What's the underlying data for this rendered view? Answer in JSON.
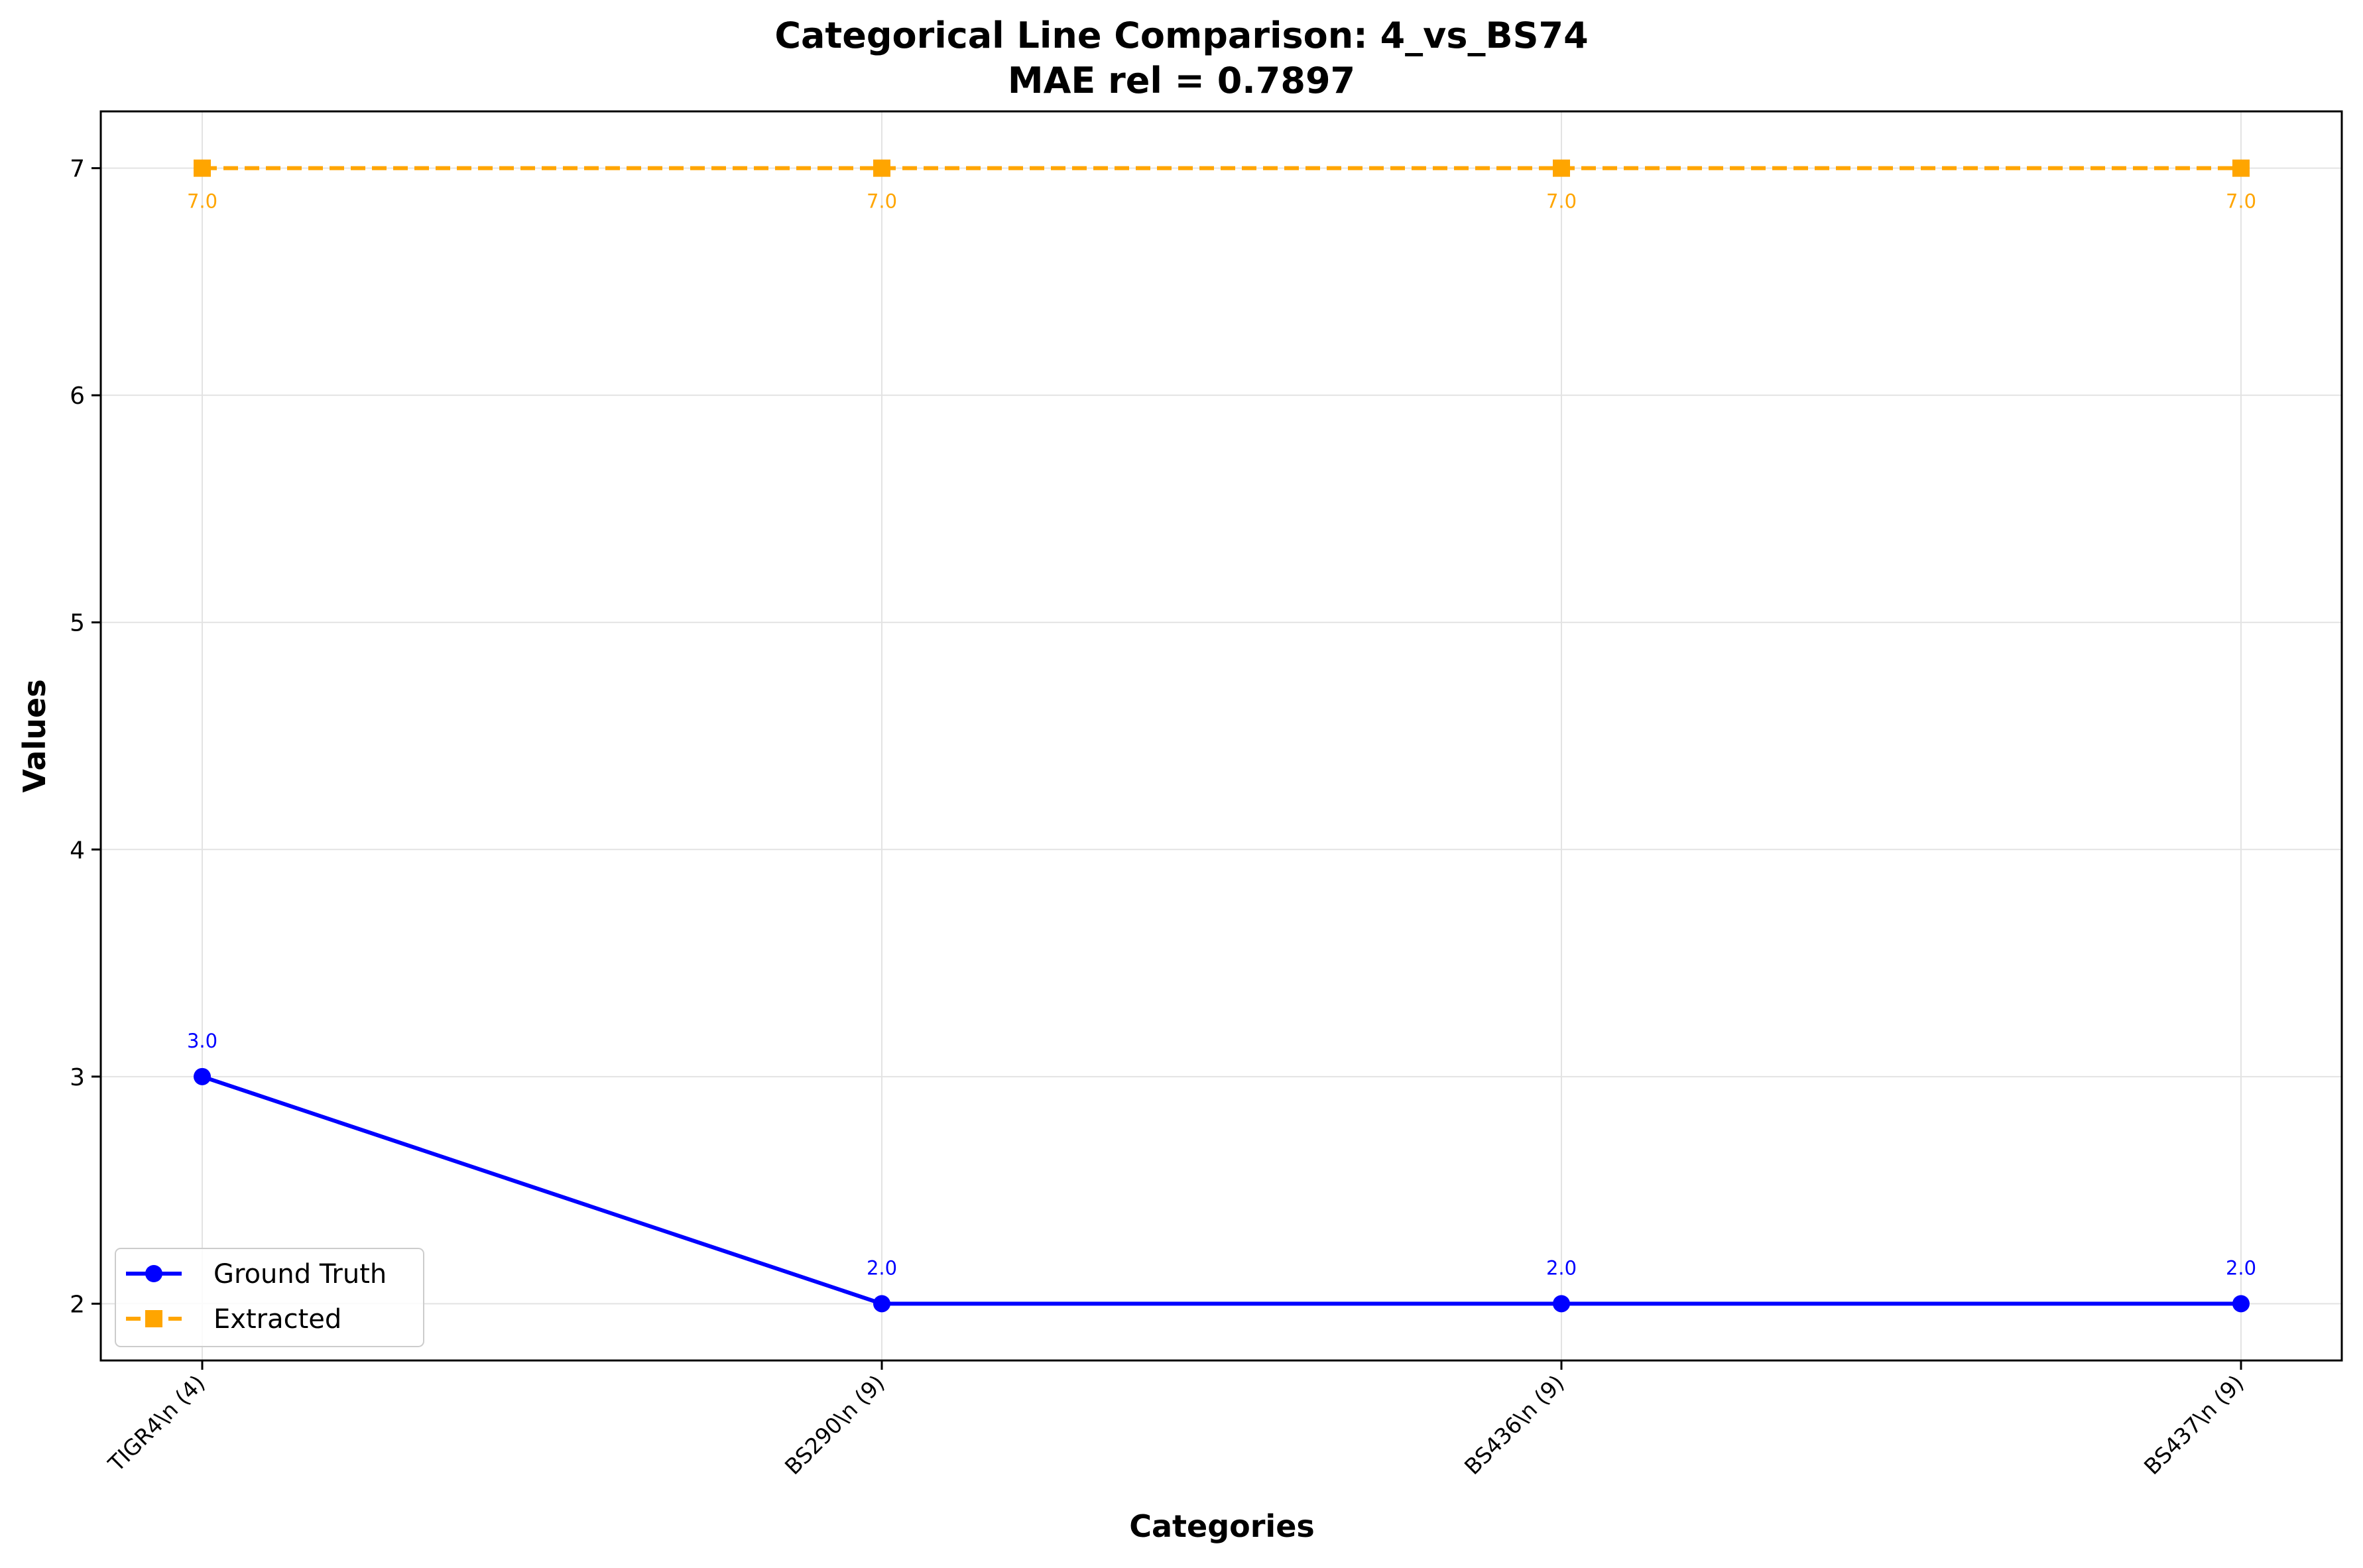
{
  "chart_data": {
    "type": "line",
    "title": "Categorical Line Comparison: 4_vs_BS74",
    "subtitle": "MAE rel = 0.7897",
    "xlabel": "Categories",
    "ylabel": "Values",
    "categories": [
      "TIGR4\\n (4)",
      "BS290\\n (9)",
      "BS436\\n (9)",
      "BS437\\n (9)"
    ],
    "ylim": [
      1.75,
      7.25
    ],
    "yticks": [
      2,
      3,
      4,
      5,
      6,
      7
    ],
    "grid": true,
    "legend_position": "lower-left",
    "series": [
      {
        "name": "Ground Truth",
        "values": [
          3.0,
          2.0,
          2.0,
          2.0
        ],
        "labels": [
          "3.0",
          "2.0",
          "2.0",
          "2.0"
        ],
        "color": "#0000ff",
        "line_style": "solid",
        "marker": "circle"
      },
      {
        "name": "Extracted",
        "values": [
          7.0,
          7.0,
          7.0,
          7.0
        ],
        "labels": [
          "7.0",
          "7.0",
          "7.0",
          "7.0"
        ],
        "color": "#ffa500",
        "line_style": "dashed",
        "marker": "square"
      }
    ]
  }
}
